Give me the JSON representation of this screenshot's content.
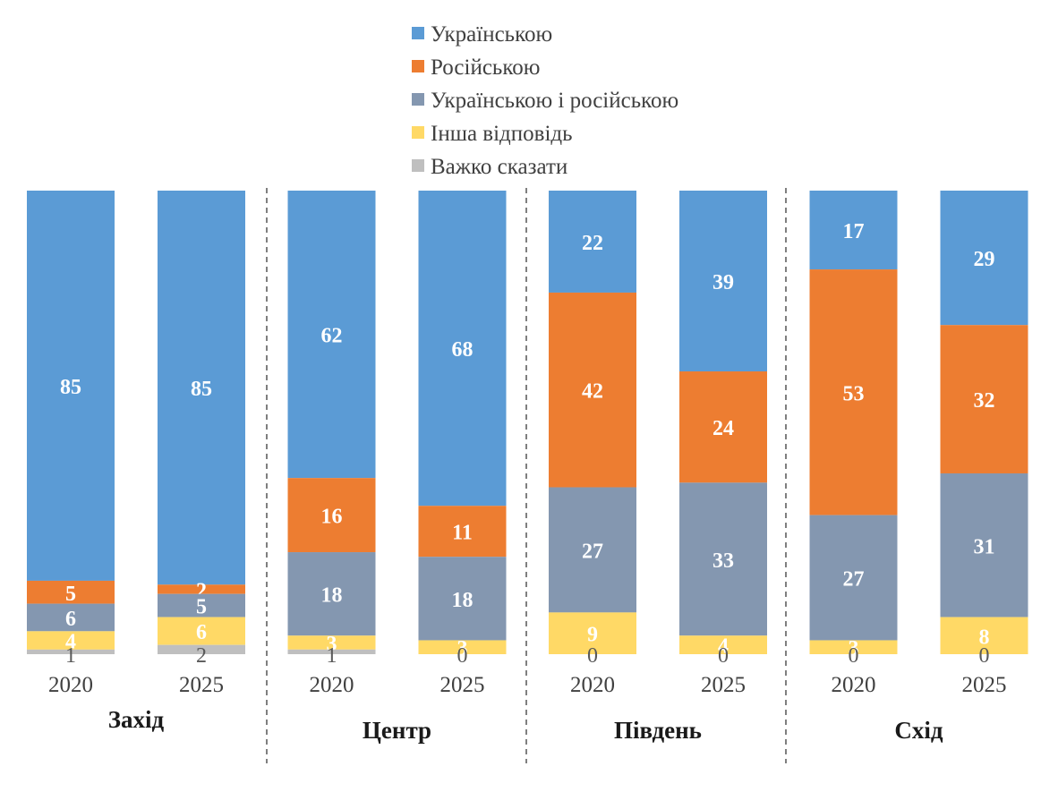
{
  "chart_data": {
    "type": "bar",
    "stacked": true,
    "orientation": "vertical",
    "ylim": [
      0,
      100
    ],
    "legend_position": "top",
    "series": [
      {
        "name": "Українською",
        "color": "#5B9BD5"
      },
      {
        "name": "Російською",
        "color": "#ED7D31"
      },
      {
        "name": "Українською і російською",
        "color": "#8497B0"
      },
      {
        "name": "Інша відповідь",
        "color": "#FFD966"
      },
      {
        "name": "Важко сказати",
        "color": "#BFBFBF"
      }
    ],
    "groups": [
      {
        "region": "Захід",
        "bars": [
          {
            "year": "2020",
            "values": [
              85,
              5,
              6,
              4,
              1
            ]
          },
          {
            "year": "2025",
            "values": [
              85,
              2,
              5,
              6,
              2
            ]
          }
        ]
      },
      {
        "region": "Центр",
        "bars": [
          {
            "year": "2020",
            "values": [
              62,
              16,
              18,
              3,
              1
            ]
          },
          {
            "year": "2025",
            "values": [
              68,
              11,
              18,
              3,
              0
            ]
          }
        ]
      },
      {
        "region": "Південь",
        "bars": [
          {
            "year": "2020",
            "values": [
              22,
              42,
              27,
              9,
              0
            ]
          },
          {
            "year": "2025",
            "values": [
              39,
              24,
              33,
              4,
              0
            ]
          }
        ]
      },
      {
        "region": "Схід",
        "bars": [
          {
            "year": "2020",
            "values": [
              17,
              53,
              27,
              3,
              0
            ]
          },
          {
            "year": "2025",
            "values": [
              29,
              32,
              31,
              8,
              0
            ]
          }
        ]
      }
    ]
  }
}
